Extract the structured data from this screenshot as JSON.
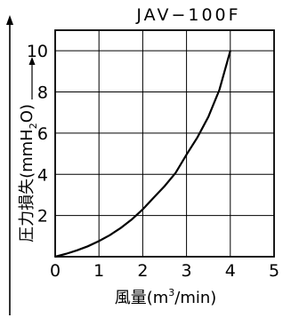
{
  "chart_data": {
    "type": "line",
    "title": "JAV−100F",
    "xlabel": "風量(m³/min)",
    "xlabel_parts": {
      "prefix": "風量(m",
      "superscript": "3",
      "suffix": "/min)"
    },
    "ylabel": "圧力損失(mmH₂O)",
    "ylabel_parts": {
      "prefix": "圧力損失(mmH",
      "subscript": "2",
      "suffix": "O)"
    },
    "xlim": [
      0,
      5
    ],
    "ylim": [
      0,
      11
    ],
    "x_ticks": [
      0,
      1,
      2,
      3,
      4,
      5
    ],
    "x_tick_labels": [
      "0",
      "1",
      "2",
      "3",
      "4",
      "5"
    ],
    "y_ticks": [
      2,
      4,
      6,
      8,
      10
    ],
    "y_tick_labels": [
      "2",
      "4",
      "6",
      "8",
      "10"
    ],
    "grid": true,
    "legend": "none",
    "series": [
      {
        "x": [
          0,
          0.25,
          0.5,
          0.75,
          1.0,
          1.25,
          1.5,
          1.75,
          2.0,
          2.25,
          2.5,
          2.75,
          3.0,
          3.25,
          3.5,
          3.75,
          4.0
        ],
        "y": [
          0,
          0.14,
          0.31,
          0.51,
          0.76,
          1.05,
          1.4,
          1.81,
          2.3,
          2.87,
          3.43,
          4.07,
          4.96,
          5.8,
          6.8,
          8.1,
          10.0
        ]
      }
    ],
    "colors": {
      "line": "#000000",
      "grid": "#000000",
      "background": "#ffffff"
    }
  }
}
